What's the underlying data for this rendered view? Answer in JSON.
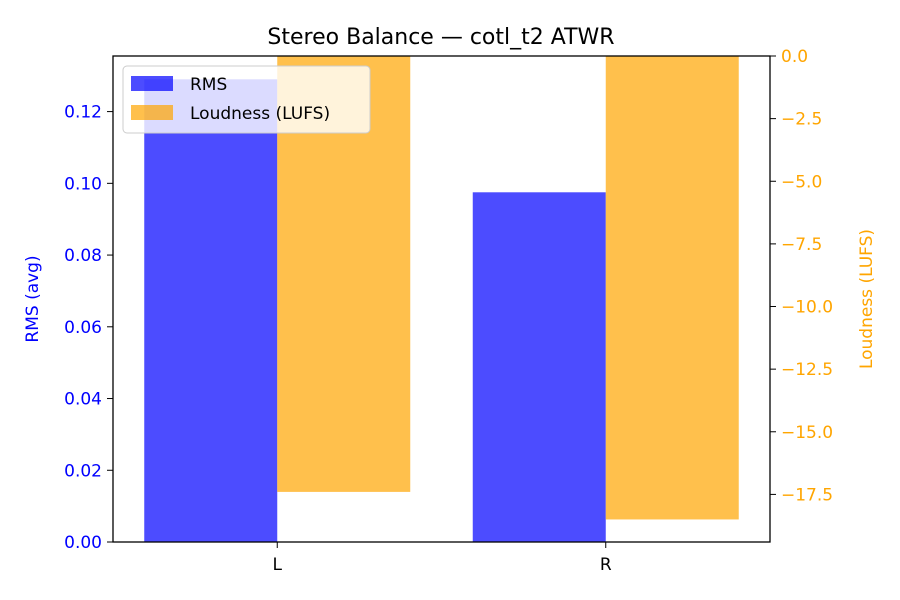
{
  "chart_data": {
    "type": "bar",
    "title": "Stereo Balance — cotl_t2 ATWR",
    "categories": [
      "L",
      "R"
    ],
    "series": [
      {
        "name": "RMS",
        "axis": "left",
        "color": "#0000ff",
        "opacity": 0.7,
        "values": [
          0.129,
          0.0975
        ]
      },
      {
        "name": "Loudness (LUFS)",
        "axis": "right",
        "color": "#ffa500",
        "opacity": 0.7,
        "values": [
          -17.4,
          -18.5
        ]
      }
    ],
    "ylabel_left": "RMS (avg)",
    "ylabel_right": "Loudness (LUFS)",
    "ylim_left": [
      0,
      0.1355
    ],
    "ylim_right": [
      -19.4,
      0
    ],
    "yticks_left": [
      "0.00",
      "0.02",
      "0.04",
      "0.06",
      "0.08",
      "0.10",
      "0.12"
    ],
    "yticks_left_values": [
      0,
      0.02,
      0.04,
      0.06,
      0.08,
      0.1,
      0.12
    ],
    "yticks_right": [
      "0.0",
      "−2.5",
      "−5.0",
      "−7.5",
      "−10.0",
      "−12.5",
      "−15.0",
      "−17.5"
    ],
    "yticks_right_values": [
      0,
      -2.5,
      -5,
      -7.5,
      -10,
      -12.5,
      -15,
      -17.5
    ],
    "left_axis_color": "#0000ff",
    "right_axis_color": "#ffa500",
    "grid": false,
    "legend_position": "upper-left"
  }
}
